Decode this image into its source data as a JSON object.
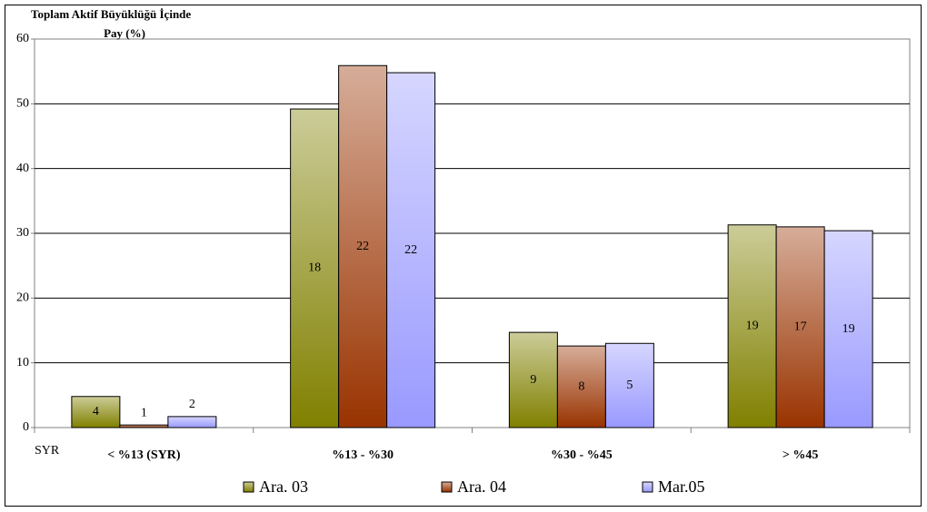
{
  "chart_data": {
    "type": "bar",
    "ylabel_lines": [
      "Toplam Aktif Büyüklüğü İçinde",
      "Pay (%)"
    ],
    "categories": [
      "< %13 (SYR)",
      "%13 - %30",
      "%30 - %45",
      "> %45"
    ],
    "note": "SYR",
    "series": [
      {
        "name": "Ara. 03",
        "color": "#808000",
        "values": [
          4.8,
          49.2,
          14.7,
          31.3
        ],
        "bar_labels": [
          "4",
          "18",
          "9",
          "19"
        ]
      },
      {
        "name": "Ara. 04",
        "color": "#993300",
        "values": [
          0.4,
          55.9,
          12.6,
          31.0
        ],
        "bar_labels": [
          "1",
          "22",
          "8",
          "17"
        ]
      },
      {
        "name": "Mar.05",
        "color": "#9999ff",
        "values": [
          1.7,
          54.8,
          13.0,
          30.4
        ],
        "bar_labels": [
          "2",
          "22",
          "5",
          "19"
        ]
      }
    ],
    "ylim": [
      0,
      60
    ],
    "yticks": [
      0,
      10,
      20,
      30,
      40,
      50,
      60
    ],
    "grid": true
  }
}
